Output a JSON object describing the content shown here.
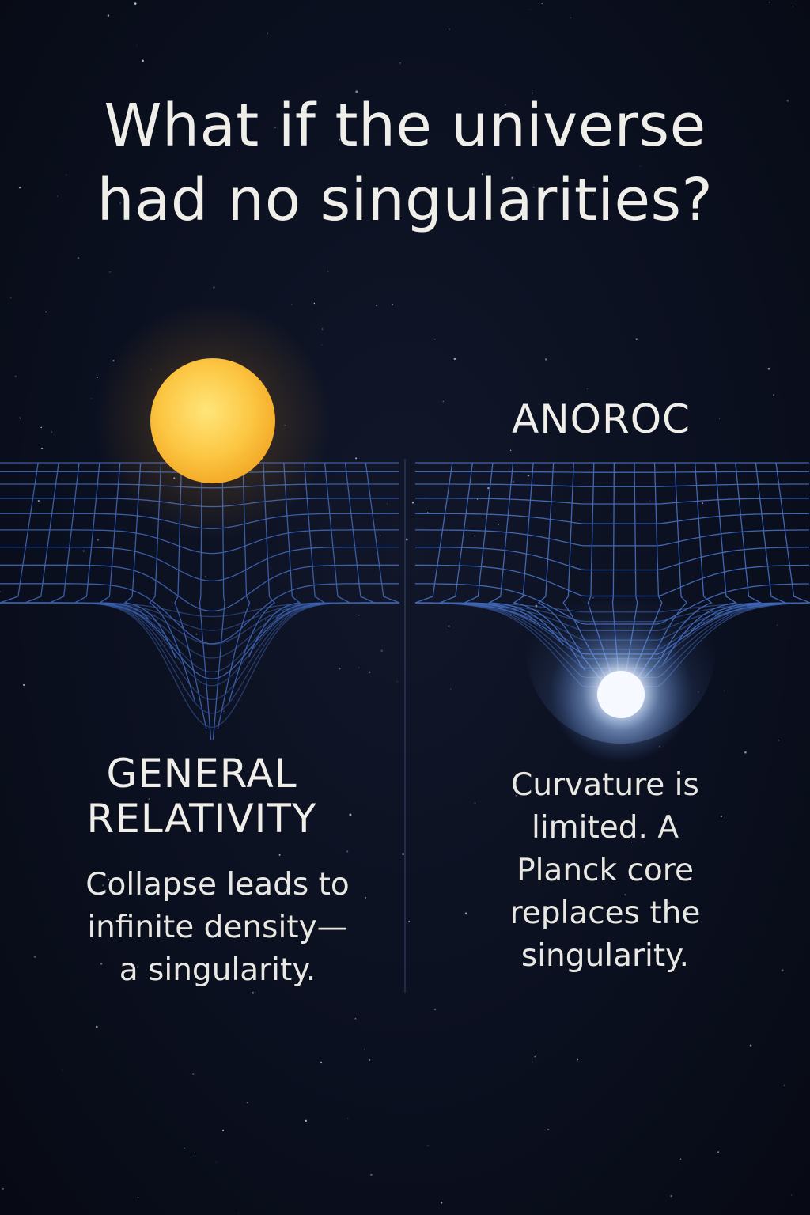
{
  "title": {
    "line1": "What if the universe",
    "line2": "had no singularities?"
  },
  "left_panel": {
    "heading_line1": "GENERAL",
    "heading_line2": "RELATIVITY",
    "description_lines": [
      "Collapse leads to",
      "infinite density—",
      "a singularity."
    ]
  },
  "right_panel": {
    "heading": "ANOROC",
    "description_lines": [
      "Curvature is",
      "limited. A",
      "Planck core",
      "replaces the",
      "singularity."
    ]
  },
  "colors": {
    "background": "#0a0e1b",
    "grid": "#3f66b8",
    "star": "#fcc744",
    "core_glow": "#f4f8ff",
    "text": "#efeee9"
  }
}
